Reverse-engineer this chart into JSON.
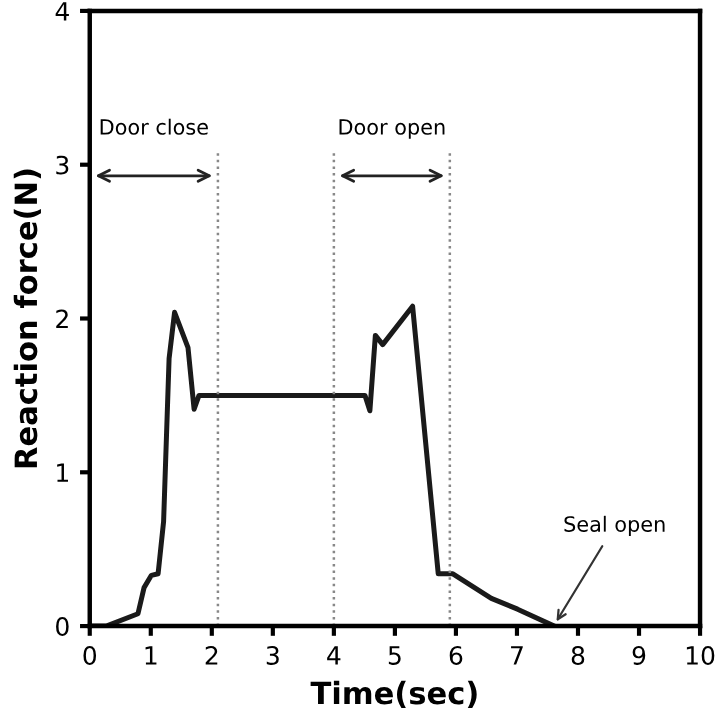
{
  "chart_data": {
    "type": "line",
    "xlabel": "Time(sec)",
    "ylabel": "Reaction force(N)",
    "x": [
      0,
      0.27,
      0.79,
      0.89,
      1.01,
      1.12,
      1.21,
      1.3,
      1.39,
      1.61,
      1.71,
      1.79,
      4.51,
      4.59,
      4.68,
      4.8,
      5.29,
      5.71,
      5.95,
      6.58,
      7.01,
      7.61
    ],
    "series": [
      {
        "color": "#1a1a1a",
        "values": [
          0,
          0,
          0.08,
          0.25,
          0.33,
          0.34,
          0.68,
          1.74,
          2.04,
          1.81,
          1.41,
          1.5,
          1.5,
          1.4,
          1.89,
          1.83,
          2.08,
          0.34,
          0.34,
          0.18,
          0.11,
          0
        ]
      }
    ],
    "xlim": [
      0,
      10
    ],
    "ylim": [
      0,
      4
    ],
    "xticks": [
      0,
      1,
      2,
      3,
      4,
      5,
      6,
      7,
      8,
      9,
      10
    ],
    "yticks": [
      0,
      1,
      2,
      3,
      4
    ],
    "grid": false,
    "marker": "none",
    "line_style": "solid",
    "ref_lines": [
      {
        "axis": "x",
        "value": 2.1,
        "color": "#888888",
        "line_style": "dotted"
      },
      {
        "axis": "x",
        "value": 4.0,
        "color": "#888888",
        "line_style": "dotted"
      },
      {
        "axis": "x",
        "value": 5.9,
        "color": "#888888",
        "line_style": "dotted"
      }
    ],
    "annotations": [
      "Door close",
      "Door open",
      {
        "text": "Seal open",
        "x": 7.6,
        "y": 0
      }
    ]
  }
}
